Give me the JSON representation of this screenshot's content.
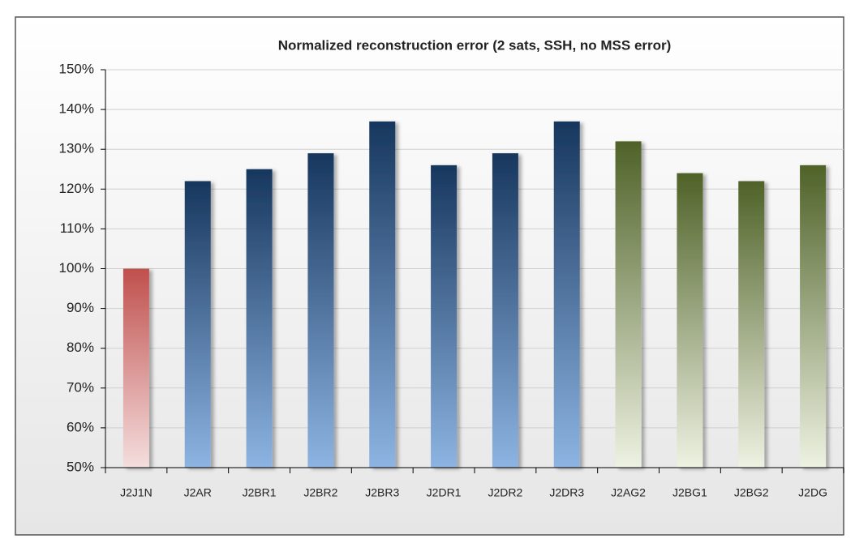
{
  "chart_data": {
    "type": "bar",
    "title": "Normalized reconstruction  error (2 sats,  SSH, no MSS error)",
    "categories": [
      "J2J1N",
      "J2AR",
      "J2BR1",
      "J2BR2",
      "J2BR3",
      "J2DR1",
      "J2DR2",
      "J2DR3",
      "J2AG2",
      "J2BG1",
      "J2BG2",
      "J2DG"
    ],
    "values": [
      100,
      122,
      125,
      129,
      137,
      126,
      129,
      137,
      132,
      124,
      122,
      126
    ],
    "colors": [
      [
        "#c0504d",
        "#f4dede"
      ],
      [
        "#17375e",
        "#8db4e2"
      ],
      [
        "#17375e",
        "#8db4e2"
      ],
      [
        "#17375e",
        "#8db4e2"
      ],
      [
        "#17375e",
        "#8db4e2"
      ],
      [
        "#17375e",
        "#8db4e2"
      ],
      [
        "#17375e",
        "#8db4e2"
      ],
      [
        "#17375e",
        "#8db4e2"
      ],
      [
        "#4f6228",
        "#eef2e2"
      ],
      [
        "#4f6228",
        "#eef2e2"
      ],
      [
        "#4f6228",
        "#eef2e2"
      ],
      [
        "#4f6228",
        "#eef2e2"
      ]
    ],
    "ylim": [
      50,
      150
    ],
    "yticks": [
      {
        "value": 50,
        "label": "50%"
      },
      {
        "value": 60,
        "label": "60%"
      },
      {
        "value": 70,
        "label": "70%"
      },
      {
        "value": 80,
        "label": "80%"
      },
      {
        "value": 90,
        "label": "90%"
      },
      {
        "value": 100,
        "label": "100%"
      },
      {
        "value": 110,
        "label": "110%"
      },
      {
        "value": 120,
        "label": "120%"
      },
      {
        "value": 130,
        "label": "130%"
      },
      {
        "value": 140,
        "label": "140%"
      },
      {
        "value": 150,
        "label": "150%"
      }
    ],
    "grid": true
  }
}
